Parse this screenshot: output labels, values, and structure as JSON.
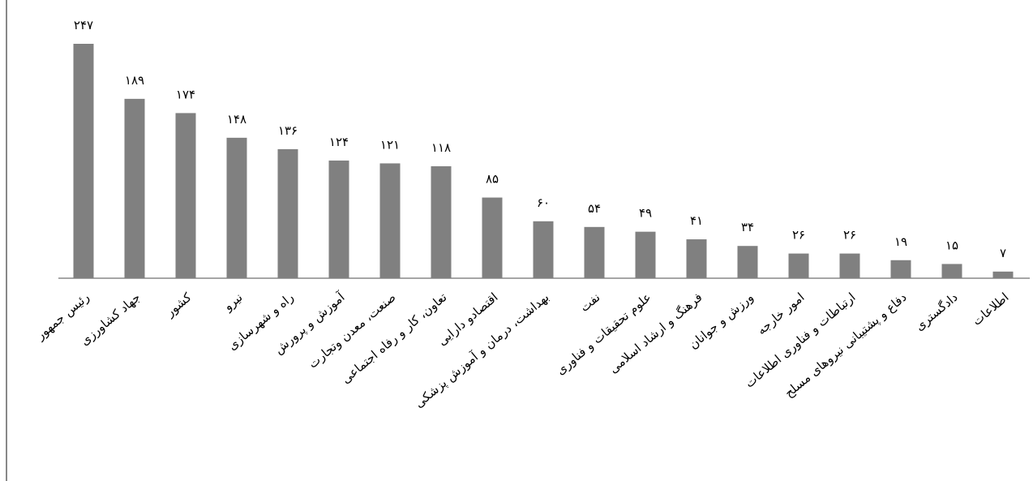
{
  "chart_data": {
    "type": "bar",
    "categories": [
      "رئیس جمهور",
      "جهاد کشاورزی",
      "کشور",
      "نیرو",
      "راه و شهرسازی",
      "آموزش و پرورش",
      "صنعت، معدن وتجارت",
      "تعاون، کار و رفاه اجتماعی",
      "اقتصادو دارایی",
      "بهداشت، درمان و آموزش پزشکی",
      "نفت",
      "علوم تحقیقات و فناوری",
      "فرهنگ و ارشاد اسلامی",
      "ورزش و جوانان",
      "امور خارجه",
      "ارتباطات و فناوری اطلاعات",
      "دفاع و پشتیبانی نیروهای مسلح",
      "دادگستری",
      "اطلاعات"
    ],
    "values": [
      247,
      189,
      174,
      148,
      136,
      124,
      121,
      118,
      85,
      60,
      54,
      49,
      41,
      34,
      26,
      26,
      19,
      15,
      7
    ],
    "value_labels": [
      "۲۴۷",
      "۱۸۹",
      "۱۷۴",
      "۱۴۸",
      "۱۳۶",
      "۱۲۴",
      "۱۲۱",
      "۱۱۸",
      "۸۵",
      "۶۰",
      "۵۴",
      "۴۹",
      "۴۱",
      "۳۴",
      "۲۶",
      "۲۶",
      "۱۹",
      "۱۵",
      "۷"
    ],
    "color": "#808080"
  }
}
